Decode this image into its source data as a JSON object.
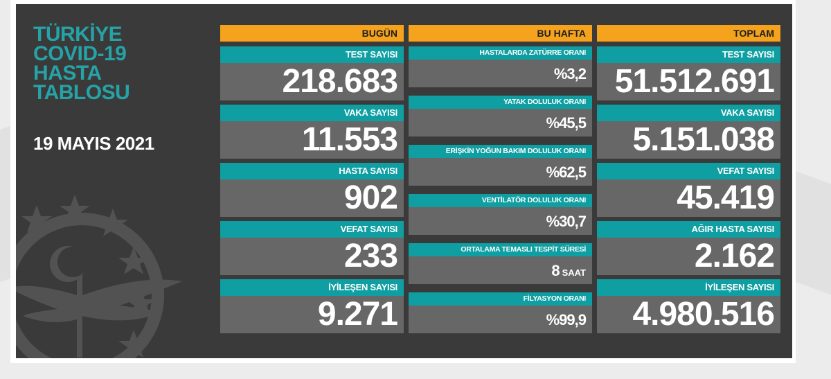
{
  "title_lines": [
    "TÜRKİYE",
    "COVID-19",
    "HASTA",
    "TABLOSU"
  ],
  "date": "19 MAYIS 2021",
  "today": {
    "header": "BUGÜN",
    "items": [
      {
        "label": "TEST SAYISI",
        "value": "218.683"
      },
      {
        "label": "VAKA SAYISI",
        "value": "11.553"
      },
      {
        "label": "HASTA SAYISI",
        "value": "902"
      },
      {
        "label": "VEFAT SAYISI",
        "value": "233"
      },
      {
        "label": "İYİLEŞEN SAYISI",
        "value": "9.271"
      }
    ]
  },
  "week": {
    "header": "BU HAFTA",
    "items": [
      {
        "label": "HASTALARDA ZATÜRRE ORANI",
        "value": "%3,2"
      },
      {
        "label": "YATAK DOLULUK ORANI",
        "value": "%45,5"
      },
      {
        "label": "ERİŞKİN YOĞUN BAKIM DOLULUK ORANI",
        "value": "%62,5"
      },
      {
        "label": "VENTİLATÖR DOLULUK ORANI",
        "value": "%30,7"
      },
      {
        "label": "ORTALAMA TEMASLI TESPİT SÜRESİ",
        "value": "8",
        "unit": "SAAT"
      },
      {
        "label": "FİLYASYON ORANI",
        "value": "%99,9"
      }
    ]
  },
  "total": {
    "header": "TOPLAM",
    "items": [
      {
        "label": "TEST SAYISI",
        "value": "51.512.691"
      },
      {
        "label": "VAKA SAYISI",
        "value": "5.151.038"
      },
      {
        "label": "VEFAT SAYISI",
        "value": "45.419"
      },
      {
        "label": "AĞIR HASTA SAYISI",
        "value": "2.162"
      },
      {
        "label": "İYİLEŞEN SAYISI",
        "value": "4.980.516"
      }
    ]
  },
  "colors": {
    "board": "#3a3a3a",
    "accent_orange": "#f5a21c",
    "accent_teal": "#0f9fa2",
    "title_teal": "#26a3a7",
    "value_gray": "#676767"
  },
  "icons": [
    "ministry-emblem-icon"
  ]
}
